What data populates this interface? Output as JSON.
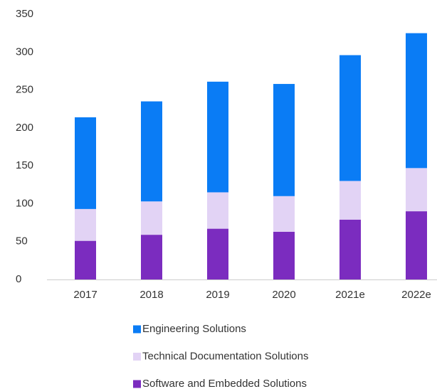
{
  "chart_data": {
    "type": "stacked_bar",
    "categories": [
      "2017",
      "2018",
      "2019",
      "2020",
      "2021e",
      "2022e"
    ],
    "series": [
      {
        "name": "Engineering Solutions",
        "color": "#0a7cf5",
        "values": [
          121,
          132,
          146,
          148,
          166,
          178
        ]
      },
      {
        "name": "Technical Documentation Solutions",
        "color": "#e2d3f5",
        "values": [
          42,
          44,
          48,
          47,
          51,
          57
        ]
      },
      {
        "name": "Software and Embedded Solutions",
        "color": "#7b2cbf",
        "values": [
          51,
          59,
          67,
          63,
          79,
          90
        ]
      }
    ],
    "ylim": [
      0,
      350
    ],
    "yticks": [
      0,
      50,
      100,
      150,
      200,
      250,
      300,
      350
    ],
    "grid": false
  }
}
